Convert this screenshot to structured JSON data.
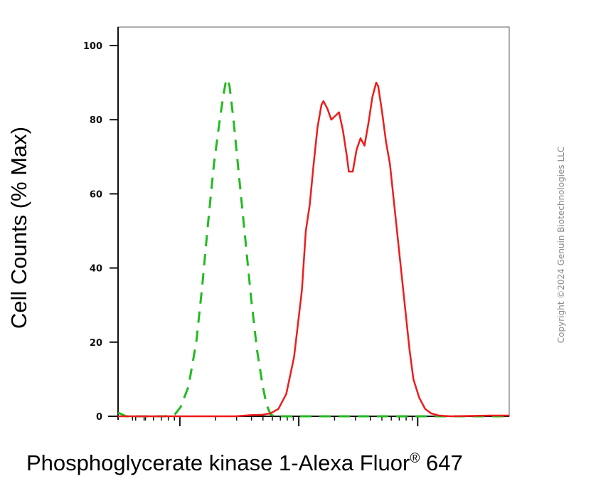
{
  "chart_data": {
    "type": "line",
    "ylabel": "Cell Counts (% Max)",
    "xlabel_main": "Phosphoglycerate kinase 1-Alexa Fluor",
    "xlabel_reg": "®",
    "xlabel_tail": " 647",
    "ylim": [
      0,
      100
    ],
    "yticks": [
      "0",
      "20",
      "40",
      "60",
      "80",
      "100"
    ],
    "x_scale": "log (biexponential)",
    "x_tick_labels_shown": false,
    "grid": false,
    "series": [
      {
        "style": "dashed",
        "color": "#22bb22",
        "points": [
          [
            0.0,
            1.0
          ],
          [
            0.02,
            0.0
          ],
          [
            0.12,
            0.0
          ],
          [
            0.145,
            0.5
          ],
          [
            0.16,
            2.5
          ],
          [
            0.18,
            8
          ],
          [
            0.2,
            20
          ],
          [
            0.215,
            35
          ],
          [
            0.23,
            52
          ],
          [
            0.245,
            68
          ],
          [
            0.26,
            80
          ],
          [
            0.27,
            87
          ],
          [
            0.275,
            90
          ],
          [
            0.28,
            91
          ],
          [
            0.285,
            89
          ],
          [
            0.295,
            80
          ],
          [
            0.31,
            64
          ],
          [
            0.325,
            48
          ],
          [
            0.34,
            32
          ],
          [
            0.355,
            18
          ],
          [
            0.37,
            8
          ],
          [
            0.38,
            3
          ],
          [
            0.39,
            0.5
          ],
          [
            0.4,
            0
          ],
          [
            0.5,
            0
          ],
          [
            0.7,
            0
          ],
          [
            1.0,
            0
          ]
        ]
      },
      {
        "style": "solid",
        "color": "#ee1c1c",
        "points": [
          [
            0.0,
            0.0
          ],
          [
            0.3,
            0.0
          ],
          [
            0.34,
            0.3
          ],
          [
            0.37,
            0.4
          ],
          [
            0.39,
            0.8
          ],
          [
            0.41,
            2
          ],
          [
            0.43,
            6
          ],
          [
            0.45,
            16
          ],
          [
            0.47,
            34
          ],
          [
            0.48,
            50
          ],
          [
            0.49,
            57
          ],
          [
            0.5,
            68
          ],
          [
            0.51,
            78
          ],
          [
            0.52,
            84
          ],
          [
            0.525,
            85
          ],
          [
            0.535,
            83
          ],
          [
            0.545,
            80
          ],
          [
            0.555,
            81
          ],
          [
            0.565,
            82
          ],
          [
            0.575,
            77
          ],
          [
            0.585,
            70
          ],
          [
            0.59,
            66
          ],
          [
            0.6,
            66
          ],
          [
            0.61,
            72
          ],
          [
            0.62,
            75
          ],
          [
            0.63,
            73
          ],
          [
            0.64,
            79
          ],
          [
            0.65,
            86
          ],
          [
            0.66,
            90
          ],
          [
            0.665,
            89
          ],
          [
            0.675,
            82
          ],
          [
            0.685,
            74
          ],
          [
            0.695,
            68
          ],
          [
            0.705,
            58
          ],
          [
            0.715,
            48
          ],
          [
            0.725,
            38
          ],
          [
            0.735,
            28
          ],
          [
            0.745,
            18
          ],
          [
            0.755,
            10
          ],
          [
            0.77,
            5
          ],
          [
            0.785,
            2
          ],
          [
            0.8,
            0.8
          ],
          [
            0.82,
            0.2
          ],
          [
            0.85,
            0.0
          ],
          [
            0.9,
            0.1
          ],
          [
            0.95,
            0.2
          ],
          [
            1.0,
            0.2
          ]
        ]
      }
    ]
  },
  "copyright": "Copyright ©2024 Genuin Biotechnologies LLC"
}
